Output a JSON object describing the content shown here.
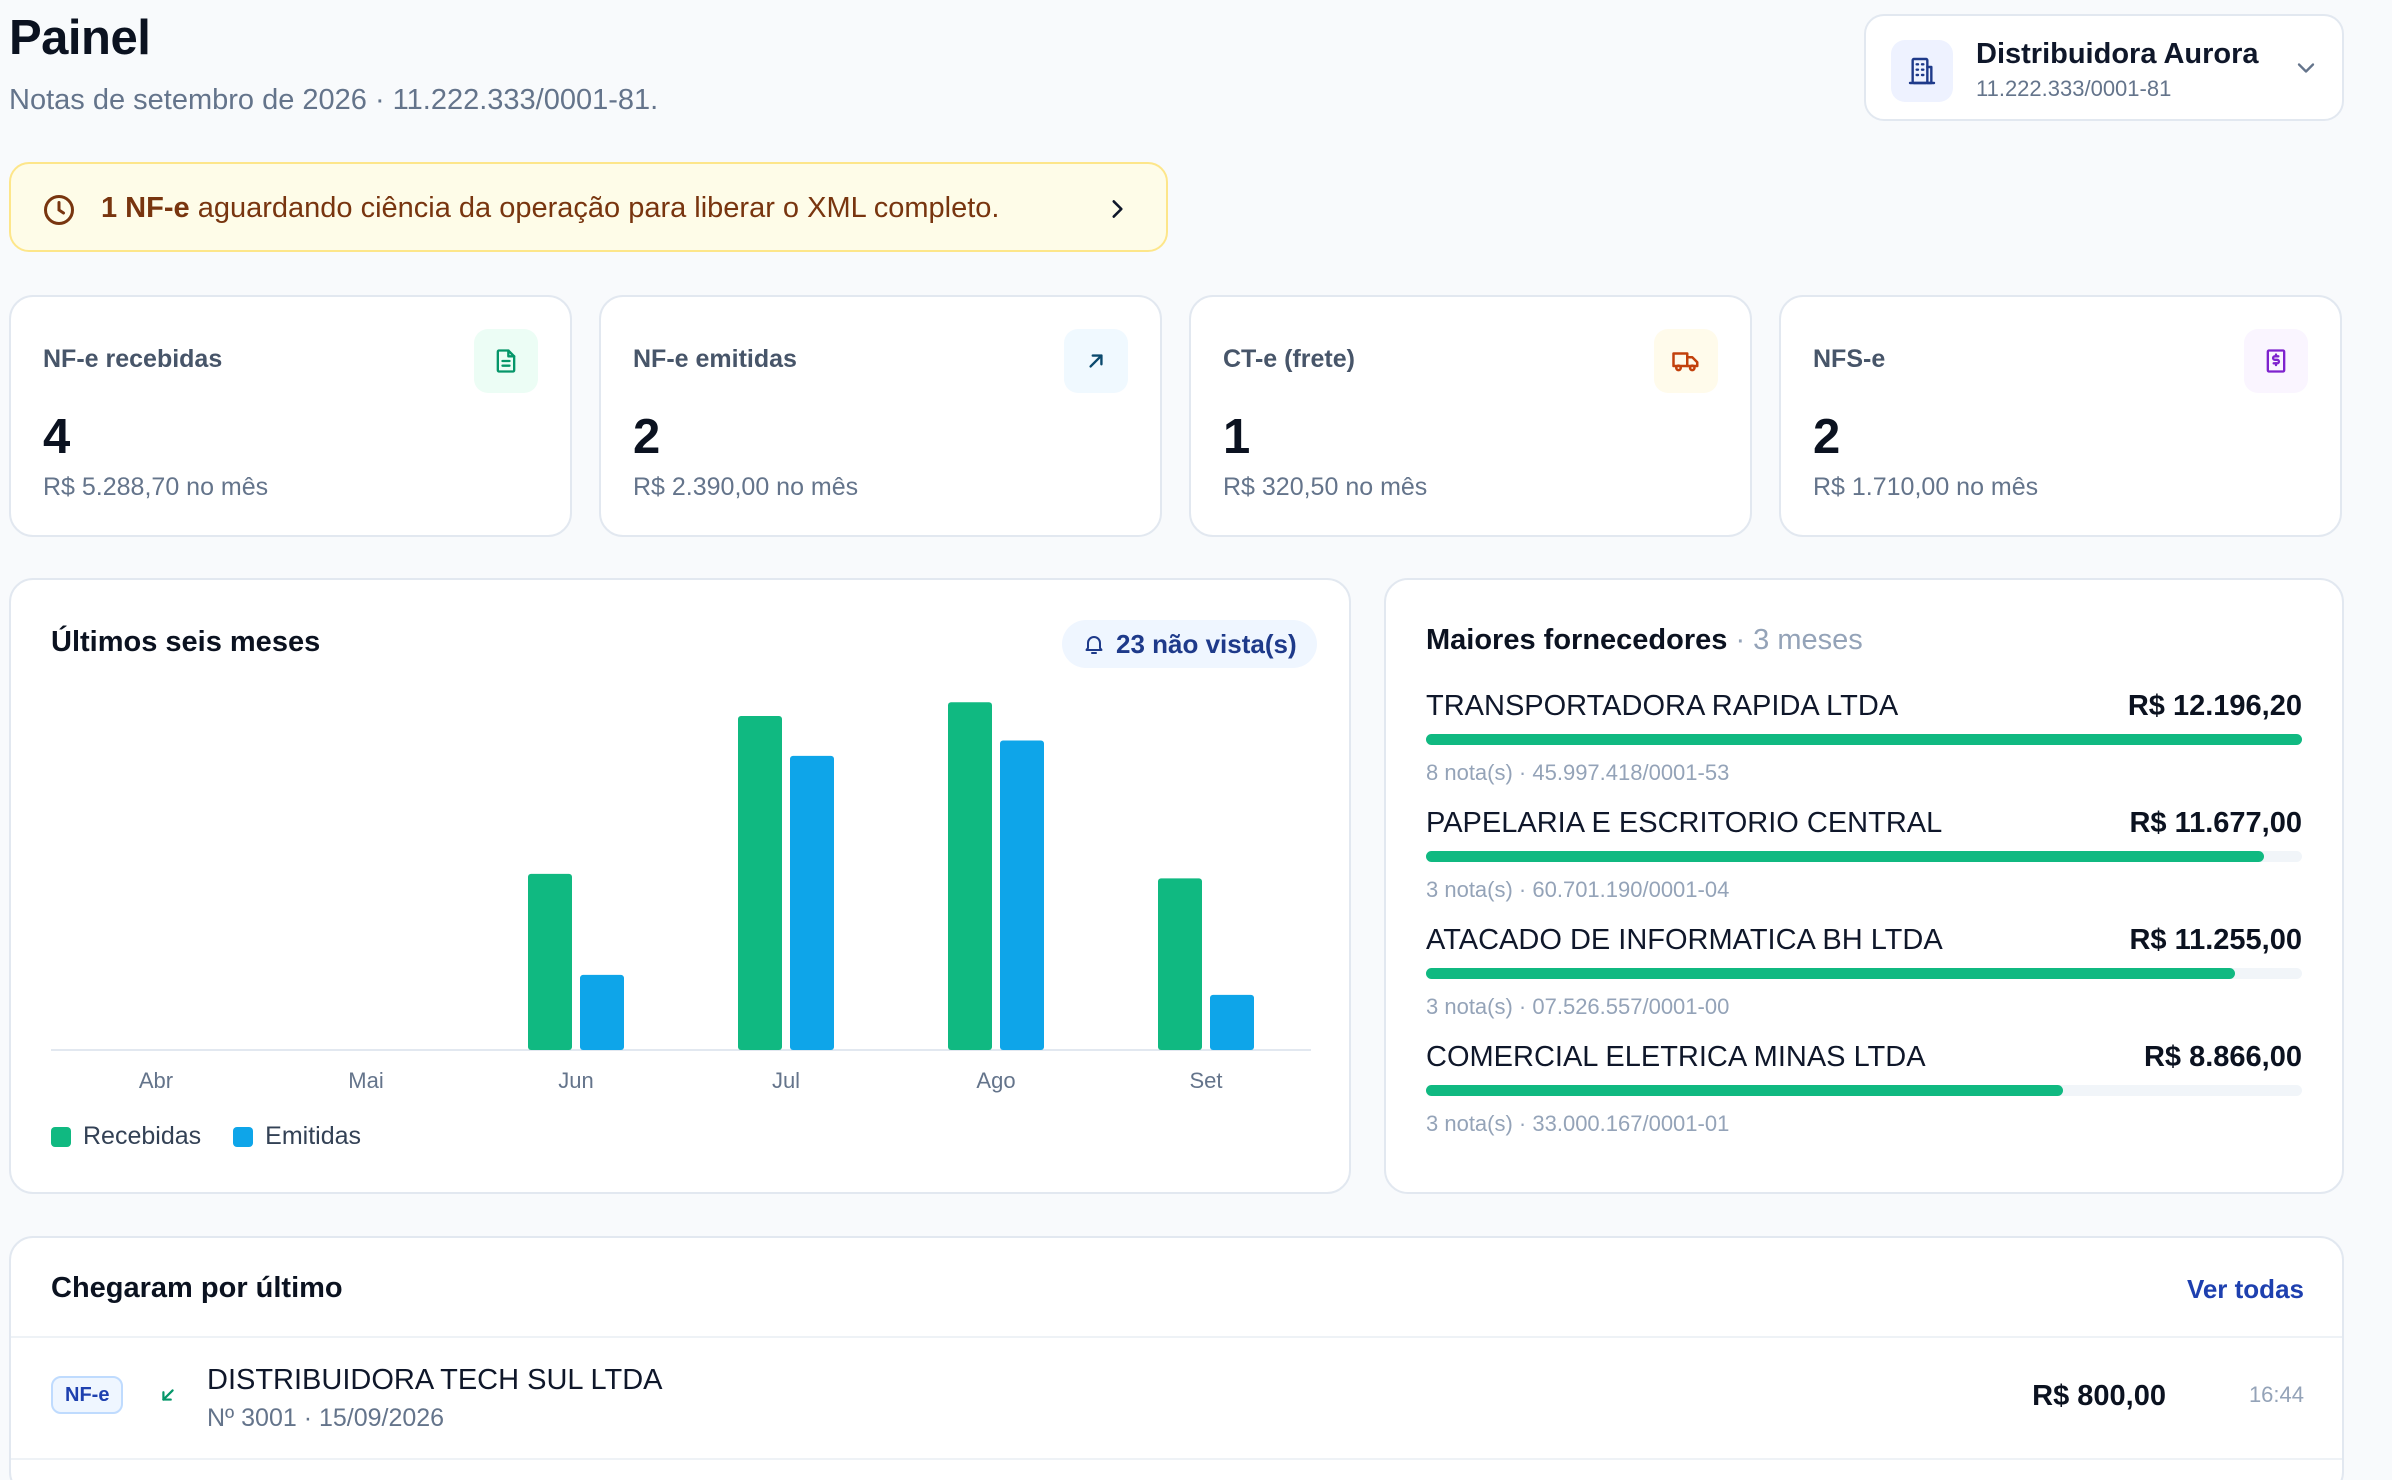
{
  "header": {
    "title": "Painel",
    "subtitle": "Notas de setembro de 2026 · 11.222.333/0001-81."
  },
  "company": {
    "name": "Distribuidora Aurora",
    "cnpj": "11.222.333/0001-81",
    "icon": "building-icon"
  },
  "alert": {
    "strong": "1 NF-e",
    "text": " aguardando ciência da operação para liberar o XML completo.",
    "icon": "clock-icon"
  },
  "stats": [
    {
      "label": "NF-e recebidas",
      "value": "4",
      "sub": "R$ 5.288,70 no mês",
      "icon": "document-icon",
      "color": "#059669",
      "bg": "#ecfdf5"
    },
    {
      "label": "NF-e emitidas",
      "value": "2",
      "sub": "R$ 2.390,00 no mês",
      "icon": "arrow-up-right-icon",
      "color": "#0369a1",
      "bg": "#f0f9ff"
    },
    {
      "label": "CT-e (frete)",
      "value": "1",
      "sub": "R$ 320,50 no mês",
      "icon": "truck-icon",
      "color": "#c2410c",
      "bg": "#fffbeb"
    },
    {
      "label": "NFS-e",
      "value": "2",
      "sub": "R$ 1.710,00 no mês",
      "icon": "receipt-dollar-icon",
      "color": "#7e22ce",
      "bg": "#faf5ff"
    }
  ],
  "chart": {
    "title": "Últimos seis meses",
    "unseen_badge": "23 não vista(s)",
    "legend": {
      "received": "Recebidas",
      "issued": "Emitidas"
    }
  },
  "chart_data": {
    "type": "bar",
    "categories": [
      "Abr",
      "Mai",
      "Jun",
      "Jul",
      "Ago",
      "Set"
    ],
    "series": [
      {
        "name": "Recebidas",
        "values": [
          0,
          0,
          11.5,
          21.8,
          22.7,
          11.2
        ],
        "color": "#10b981"
      },
      {
        "name": "Emitidas",
        "values": [
          0,
          0,
          4.9,
          19.2,
          20.2,
          3.6
        ],
        "color": "#0ea5e9"
      }
    ],
    "ylim": [
      0,
      23.5
    ],
    "grid": false,
    "legend": "bottom-left"
  },
  "suppliers": {
    "title": "Maiores fornecedores",
    "separator": " · ",
    "period": "3 meses",
    "items": [
      {
        "name": "TRANSPORTADORA RAPIDA LTDA",
        "amount": "R$ 12.196,20",
        "meta": "8 nota(s) · 45.997.418/0001-53",
        "share": 1.0
      },
      {
        "name": "PAPELARIA E ESCRITORIO CENTRAL",
        "amount": "R$ 11.677,00",
        "meta": "3 nota(s) · 60.701.190/0001-04",
        "share": 0.957
      },
      {
        "name": "ATACADO DE INFORMATICA BH LTDA",
        "amount": "R$ 11.255,00",
        "meta": "3 nota(s) · 07.526.557/0001-00",
        "share": 0.923
      },
      {
        "name": "COMERCIAL ELETRICA MINAS LTDA",
        "amount": "R$ 8.866,00",
        "meta": "3 nota(s) · 33.000.167/0001-01",
        "share": 0.727
      }
    ]
  },
  "recent": {
    "title": "Chegaram por último",
    "see_all": "Ver todas",
    "rows": [
      {
        "type": "NF-e",
        "direction_icon": "arrow-down-left-icon",
        "name": "DISTRIBUIDORA TECH SUL LTDA",
        "meta": "Nº 3001 · 15/09/2026",
        "amount": "R$ 800,00",
        "time": "16:44"
      }
    ]
  }
}
